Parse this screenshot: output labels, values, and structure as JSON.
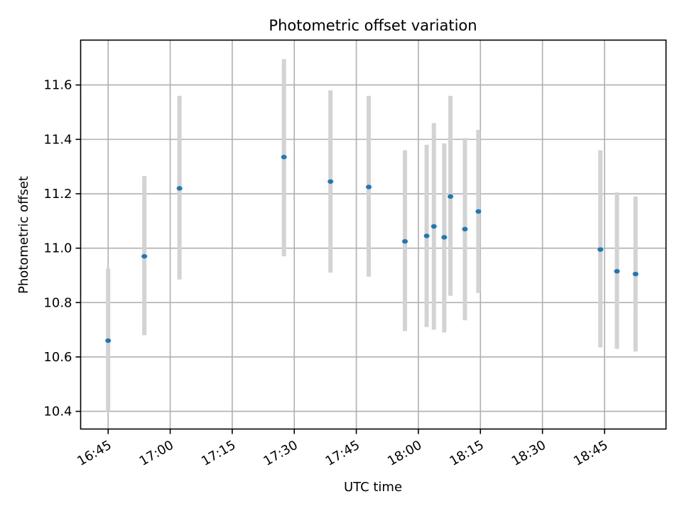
{
  "chart_data": {
    "type": "scatter",
    "title": "Photometric offset variation",
    "xlabel": "UTC time",
    "ylabel": "Photometric offset",
    "x_ticks": [
      "16:45",
      "17:00",
      "17:15",
      "17:30",
      "17:45",
      "18:00",
      "18:15",
      "18:30",
      "18:45"
    ],
    "y_ticks": [
      "10.4",
      "10.6",
      "10.8",
      "11.0",
      "11.2",
      "11.4",
      "11.6"
    ],
    "xlim": [
      "16:38:21",
      "18:59:52"
    ],
    "ylim": [
      10.335,
      11.765
    ],
    "grid": true,
    "marker_color": "#1f77b4",
    "errorbar_color": "#d3d3d3",
    "points": [
      {
        "x": "16:45:00",
        "y": 10.66,
        "yerr_low": 10.4,
        "yerr_high": 10.925
      },
      {
        "x": "16:53:45",
        "y": 10.97,
        "yerr_low": 10.68,
        "yerr_high": 11.265
      },
      {
        "x": "17:02:15",
        "y": 11.22,
        "yerr_low": 10.885,
        "yerr_high": 11.56
      },
      {
        "x": "17:27:30",
        "y": 11.335,
        "yerr_low": 10.97,
        "yerr_high": 11.695
      },
      {
        "x": "17:38:45",
        "y": 11.245,
        "yerr_low": 10.91,
        "yerr_high": 11.58
      },
      {
        "x": "17:48:00",
        "y": 11.225,
        "yerr_low": 10.895,
        "yerr_high": 11.56
      },
      {
        "x": "17:56:45",
        "y": 11.025,
        "yerr_low": 10.695,
        "yerr_high": 11.36
      },
      {
        "x": "18:02:00",
        "y": 11.045,
        "yerr_low": 10.71,
        "yerr_high": 11.38
      },
      {
        "x": "18:03:45",
        "y": 11.08,
        "yerr_low": 10.7,
        "yerr_high": 11.46
      },
      {
        "x": "18:06:15",
        "y": 11.04,
        "yerr_low": 10.69,
        "yerr_high": 11.385
      },
      {
        "x": "18:07:45",
        "y": 11.19,
        "yerr_low": 10.825,
        "yerr_high": 11.56
      },
      {
        "x": "18:11:15",
        "y": 11.07,
        "yerr_low": 10.735,
        "yerr_high": 11.405
      },
      {
        "x": "18:14:30",
        "y": 11.135,
        "yerr_low": 10.835,
        "yerr_high": 11.435
      },
      {
        "x": "18:44:00",
        "y": 10.995,
        "yerr_low": 10.635,
        "yerr_high": 11.36
      },
      {
        "x": "18:48:00",
        "y": 10.915,
        "yerr_low": 10.63,
        "yerr_high": 11.205
      },
      {
        "x": "18:52:30",
        "y": 10.905,
        "yerr_low": 10.62,
        "yerr_high": 11.19
      }
    ]
  }
}
